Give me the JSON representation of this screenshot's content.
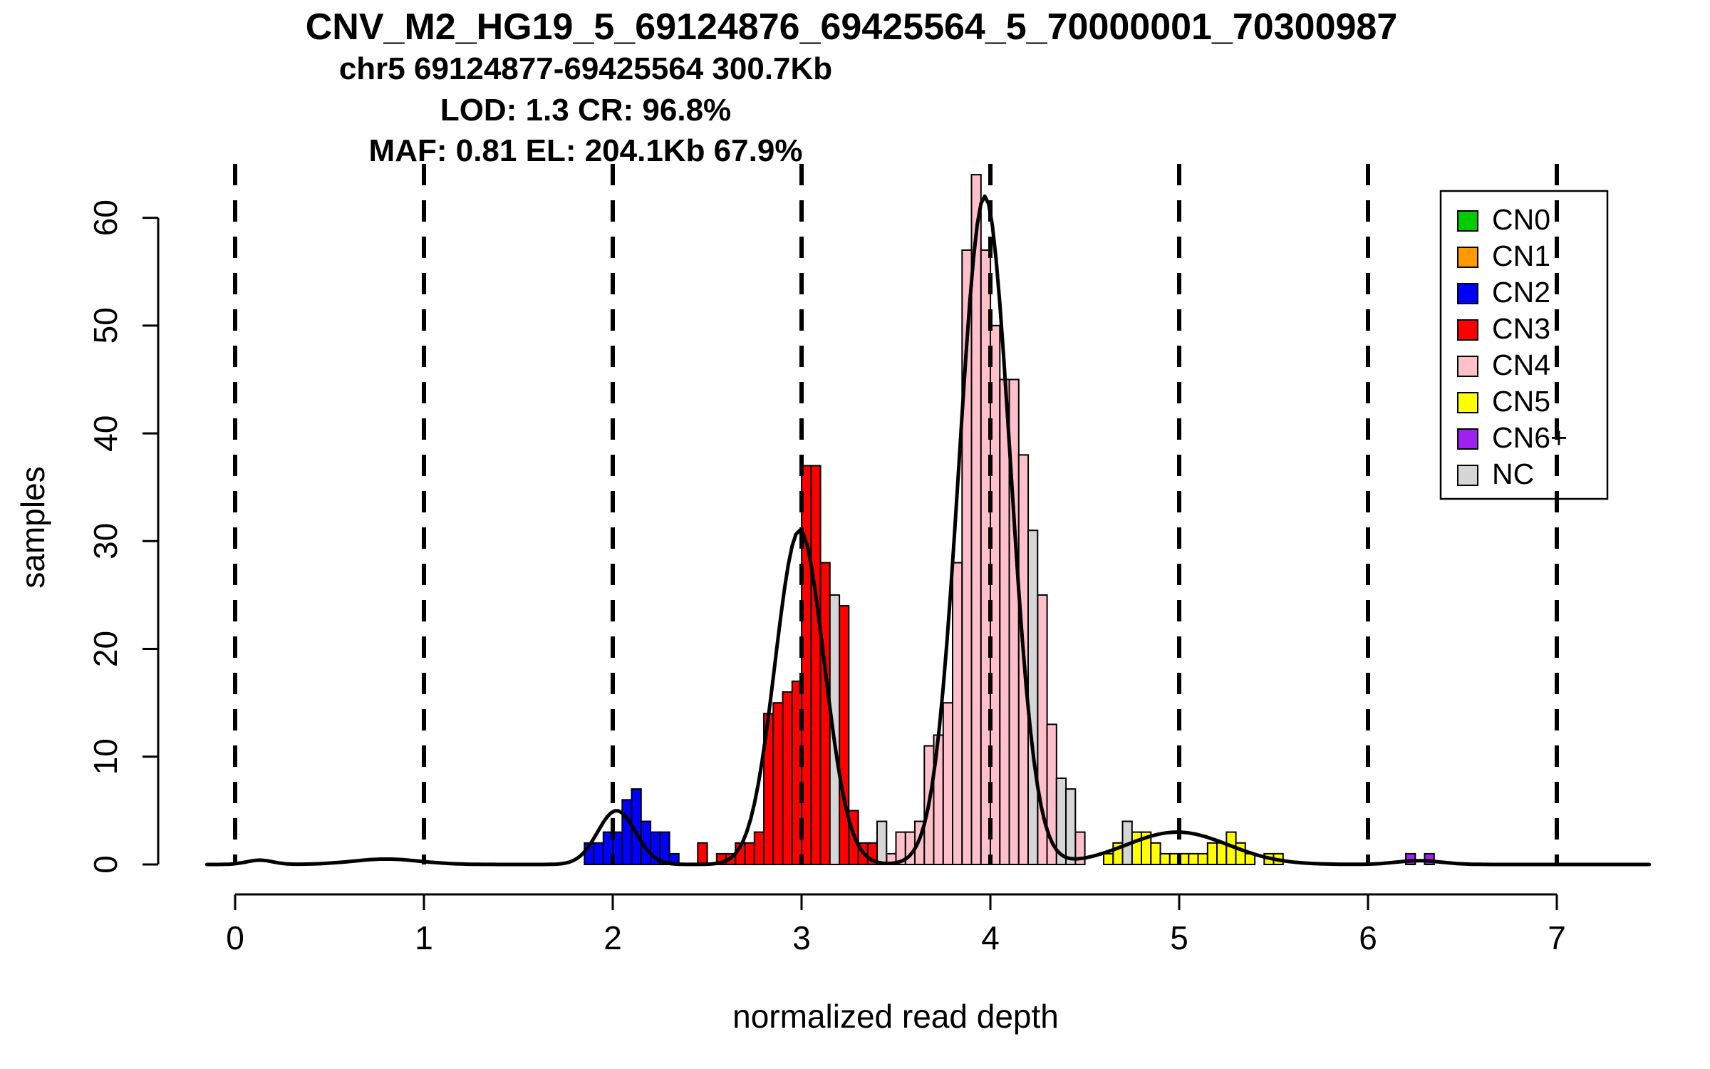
{
  "chart_data": {
    "type": "bar",
    "titles": [
      "CNV_M2_HG19_5_69124876_69425564_5_70000001_70300987",
      "chr5 69124877-69425564 300.7Kb",
      "LOD: 1.3 CR: 96.8%",
      "MAF: 0.81 EL: 204.1Kb 67.9%"
    ],
    "xlabel": "normalized read depth",
    "ylabel": "samples",
    "x_ticks": [
      0,
      1,
      2,
      3,
      4,
      5,
      6,
      7
    ],
    "y_ticks": [
      0,
      10,
      20,
      30,
      40,
      50,
      60
    ],
    "vlines_x": [
      0,
      1,
      2,
      3,
      4,
      5,
      6,
      7
    ],
    "vline_style": "dashed",
    "xlim": [
      -0.4,
      7.55
    ],
    "ylim": [
      0,
      65
    ],
    "bin_width": 0.05,
    "grid": false,
    "legend_position": "top-right",
    "series": [
      {
        "name": "CN0",
        "color": "#00CC00",
        "bars": []
      },
      {
        "name": "CN1",
        "color": "#FF9900",
        "bars": []
      },
      {
        "name": "CN2",
        "color": "#0000FF",
        "bars": [
          [
            1.85,
            2
          ],
          [
            1.9,
            2
          ],
          [
            1.95,
            3
          ],
          [
            2.0,
            3
          ],
          [
            2.05,
            6
          ],
          [
            2.1,
            7
          ],
          [
            2.15,
            4
          ],
          [
            2.2,
            3
          ],
          [
            2.25,
            3
          ],
          [
            2.3,
            1
          ]
        ]
      },
      {
        "name": "CN3",
        "color": "#FF0000",
        "bars": [
          [
            2.45,
            2
          ],
          [
            2.55,
            1
          ],
          [
            2.6,
            1
          ],
          [
            2.65,
            2
          ],
          [
            2.7,
            2
          ],
          [
            2.75,
            3
          ],
          [
            2.8,
            14
          ],
          [
            2.85,
            15
          ],
          [
            2.9,
            16
          ],
          [
            2.95,
            17
          ],
          [
            3.0,
            37
          ],
          [
            3.05,
            37
          ],
          [
            3.1,
            28
          ],
          [
            3.2,
            24
          ],
          [
            3.25,
            5
          ],
          [
            3.3,
            2
          ],
          [
            3.35,
            2
          ]
        ]
      },
      {
        "name": "CN4",
        "color": "#FFC0CB",
        "bars": [
          [
            3.45,
            1
          ],
          [
            3.5,
            3
          ],
          [
            3.55,
            3
          ],
          [
            3.6,
            4
          ],
          [
            3.65,
            11
          ],
          [
            3.7,
            12
          ],
          [
            3.75,
            15
          ],
          [
            3.8,
            28
          ],
          [
            3.85,
            57
          ],
          [
            3.9,
            64
          ],
          [
            3.95,
            57
          ],
          [
            4.0,
            50
          ],
          [
            4.05,
            45
          ],
          [
            4.1,
            45
          ],
          [
            4.15,
            38
          ],
          [
            4.25,
            25
          ],
          [
            4.3,
            13
          ],
          [
            4.45,
            3
          ]
        ]
      },
      {
        "name": "CN5",
        "color": "#FFFF00",
        "bars": [
          [
            4.6,
            1
          ],
          [
            4.65,
            2
          ],
          [
            4.75,
            3
          ],
          [
            4.8,
            3
          ],
          [
            4.85,
            2
          ],
          [
            4.9,
            1
          ],
          [
            4.95,
            1
          ],
          [
            5.0,
            1
          ],
          [
            5.05,
            1
          ],
          [
            5.1,
            1
          ],
          [
            5.15,
            2
          ],
          [
            5.2,
            2
          ],
          [
            5.25,
            3
          ],
          [
            5.3,
            2
          ],
          [
            5.35,
            1
          ],
          [
            5.45,
            1
          ],
          [
            5.5,
            1
          ]
        ]
      },
      {
        "name": "CN6+",
        "color": "#A020F0",
        "bars": [
          [
            6.2,
            1
          ],
          [
            6.3,
            1
          ]
        ]
      },
      {
        "name": "NC",
        "color": "#D6D6D6",
        "bars": [
          [
            3.15,
            25
          ],
          [
            3.4,
            4
          ],
          [
            4.2,
            31
          ],
          [
            4.35,
            8
          ],
          [
            4.4,
            7
          ],
          [
            4.7,
            4
          ]
        ]
      }
    ],
    "density_curves": [
      {
        "mean": 0.13,
        "sd": 0.07,
        "peak": 0.4
      },
      {
        "mean": 0.8,
        "sd": 0.18,
        "peak": 0.5
      },
      {
        "mean": 2.02,
        "sd": 0.1,
        "peak": 5
      },
      {
        "mean": 2.99,
        "sd": 0.13,
        "peak": 31
      },
      {
        "mean": 3.97,
        "sd": 0.135,
        "peak": 62
      },
      {
        "mean": 4.99,
        "sd": 0.27,
        "peak": 3
      },
      {
        "mean": 6.27,
        "sd": 0.12,
        "peak": 0.35
      }
    ],
    "curve_range": [
      -0.15,
      7.5
    ]
  }
}
